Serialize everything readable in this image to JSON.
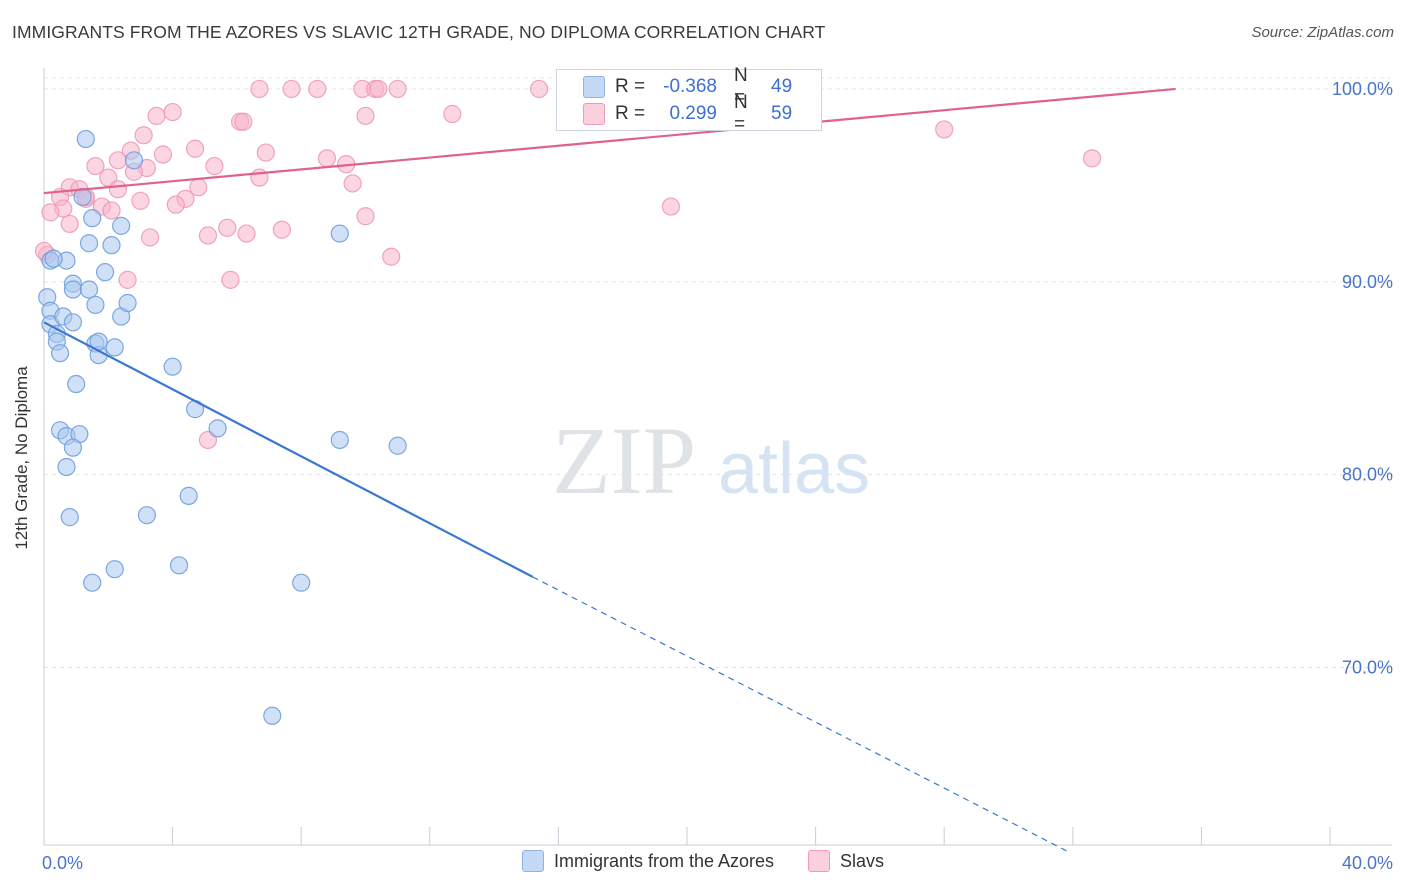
{
  "title": "IMMIGRANTS FROM THE AZORES VS SLAVIC 12TH GRADE, NO DIPLOMA CORRELATION CHART",
  "source": "Source: ZipAtlas.com",
  "watermark": {
    "zip": "ZIP",
    "atlas": "atlas"
  },
  "stats": {
    "r_label": "R =",
    "n_label": "N =",
    "rows": [
      {
        "r": "-0.368",
        "n": "49",
        "color": "#a9c8f0"
      },
      {
        "r": "0.299",
        "n": "59",
        "color": "#f7b5ca"
      }
    ]
  },
  "legend": [
    {
      "label": "Immigrants from the Azores",
      "color": "#a9c8f0"
    },
    {
      "label": "Slavs",
      "color": "#f7b5ca"
    }
  ],
  "colors": {
    "blue_fill": "#a9c8f0",
    "blue_line": "#3a78d0",
    "pink_fill": "#f7b5ca",
    "pink_line": "#e0628c",
    "axis_text": "#4a74c9",
    "grid": "#e3e6ea"
  },
  "chart_data": {
    "type": "scatter",
    "title": "IMMIGRANTS FROM THE AZORES VS SLAVIC 12TH GRADE, NO DIPLOMA CORRELATION CHART",
    "xlabel": "",
    "ylabel": "12th Grade, No Diploma",
    "xlim": [
      0,
      40
    ],
    "ylim": [
      60.8,
      101.5
    ],
    "x_tick_labels": [
      "0.0%",
      "40.0%"
    ],
    "y_ticks": [
      70,
      80,
      90,
      100
    ],
    "y_tick_labels": [
      "70.0%",
      "80.0%",
      "90.0%",
      "100.0%"
    ],
    "grid": true,
    "series": [
      {
        "name": "Immigrants from the Azores",
        "r": -0.368,
        "n": 49,
        "trend": {
          "x0": 0.0,
          "y0": 87.9,
          "x1": 15.2,
          "y1": 74.7,
          "dash_to_x": 31.8,
          "dash_to_y": 60.5
        },
        "points": [
          [
            1.3,
            97.4
          ],
          [
            0.1,
            89.2
          ],
          [
            0.2,
            88.5
          ],
          [
            0.2,
            87.8
          ],
          [
            0.4,
            87.3
          ],
          [
            0.4,
            86.9
          ],
          [
            0.5,
            86.3
          ],
          [
            0.6,
            88.2
          ],
          [
            0.9,
            87.9
          ],
          [
            0.9,
            89.9
          ],
          [
            0.9,
            89.6
          ],
          [
            1.4,
            89.6
          ],
          [
            1.6,
            88.8
          ],
          [
            1.6,
            86.8
          ],
          [
            1.7,
            86.2
          ],
          [
            1.7,
            86.9
          ],
          [
            2.2,
            86.6
          ],
          [
            2.4,
            88.2
          ],
          [
            2.6,
            88.9
          ],
          [
            1.2,
            94.4
          ],
          [
            1.5,
            93.3
          ],
          [
            1.4,
            92.0
          ],
          [
            2.1,
            91.9
          ],
          [
            2.4,
            92.9
          ],
          [
            1.9,
            90.5
          ],
          [
            0.2,
            91.1
          ],
          [
            0.7,
            91.1
          ],
          [
            2.8,
            96.3
          ],
          [
            4.0,
            85.6
          ],
          [
            1.0,
            84.7
          ],
          [
            4.7,
            83.4
          ],
          [
            5.4,
            82.4
          ],
          [
            0.5,
            82.3
          ],
          [
            0.7,
            82.0
          ],
          [
            1.1,
            82.1
          ],
          [
            0.9,
            81.4
          ],
          [
            0.7,
            80.4
          ],
          [
            9.2,
            81.8
          ],
          [
            11.0,
            81.5
          ],
          [
            0.8,
            77.8
          ],
          [
            3.2,
            77.9
          ],
          [
            4.5,
            78.9
          ],
          [
            2.2,
            75.1
          ],
          [
            4.2,
            75.3
          ],
          [
            1.5,
            74.4
          ],
          [
            8.0,
            74.4
          ],
          [
            7.1,
            67.5
          ],
          [
            9.2,
            92.5
          ],
          [
            0.3,
            91.2
          ]
        ]
      },
      {
        "name": "Slavs",
        "r": 0.299,
        "n": 59,
        "trend": {
          "x0": 0.0,
          "y0": 94.6,
          "x1": 35.2,
          "y1": 100.0
        },
        "points": [
          [
            6.7,
            100.0
          ],
          [
            7.7,
            100.0
          ],
          [
            8.5,
            100.0
          ],
          [
            9.9,
            100.0
          ],
          [
            10.3,
            100.0
          ],
          [
            10.4,
            100.0
          ],
          [
            11.0,
            100.0
          ],
          [
            15.4,
            100.0
          ],
          [
            3.5,
            98.6
          ],
          [
            4.0,
            98.8
          ],
          [
            6.1,
            98.3
          ],
          [
            6.2,
            98.3
          ],
          [
            10.0,
            98.6
          ],
          [
            12.7,
            98.7
          ],
          [
            28.0,
            97.9
          ],
          [
            32.6,
            96.4
          ],
          [
            3.1,
            97.6
          ],
          [
            2.7,
            96.8
          ],
          [
            3.7,
            96.6
          ],
          [
            4.7,
            96.9
          ],
          [
            2.3,
            96.3
          ],
          [
            1.6,
            96.0
          ],
          [
            5.3,
            96.0
          ],
          [
            6.9,
            96.7
          ],
          [
            8.8,
            96.4
          ],
          [
            9.4,
            96.1
          ],
          [
            3.2,
            95.9
          ],
          [
            2.8,
            95.7
          ],
          [
            2.0,
            95.4
          ],
          [
            6.7,
            95.4
          ],
          [
            0.8,
            94.9
          ],
          [
            1.1,
            94.8
          ],
          [
            2.3,
            94.8
          ],
          [
            4.8,
            94.9
          ],
          [
            9.6,
            95.1
          ],
          [
            0.5,
            94.4
          ],
          [
            1.3,
            94.3
          ],
          [
            4.4,
            94.3
          ],
          [
            3.0,
            94.2
          ],
          [
            4.1,
            94.0
          ],
          [
            0.6,
            93.8
          ],
          [
            1.8,
            93.9
          ],
          [
            2.1,
            93.7
          ],
          [
            0.2,
            93.6
          ],
          [
            0.8,
            93.0
          ],
          [
            10.0,
            93.4
          ],
          [
            5.7,
            92.8
          ],
          [
            7.4,
            92.7
          ],
          [
            3.3,
            92.3
          ],
          [
            5.1,
            92.4
          ],
          [
            6.3,
            92.5
          ],
          [
            19.5,
            93.9
          ],
          [
            10.8,
            91.3
          ],
          [
            0.1,
            91.4
          ],
          [
            2.6,
            90.1
          ],
          [
            5.8,
            90.1
          ],
          [
            5.1,
            81.8
          ],
          [
            1.3,
            94.4
          ],
          [
            0.0,
            91.6
          ]
        ]
      }
    ]
  }
}
